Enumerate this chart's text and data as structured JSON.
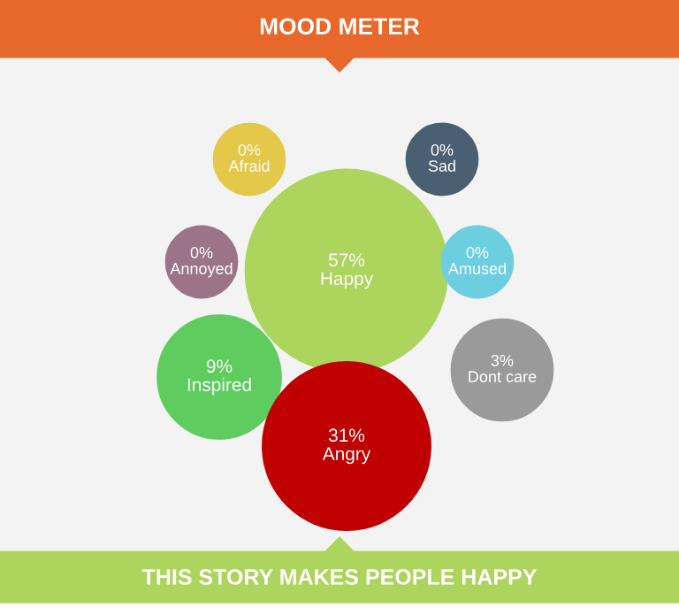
{
  "chart_data": {
    "type": "other",
    "title": "MOOD METER",
    "categories": [
      "Afraid",
      "Sad",
      "Annoyed",
      "Happy",
      "Amused",
      "Inspired",
      "Dont care",
      "Angry"
    ],
    "values": [
      0,
      0,
      0,
      57,
      0,
      9,
      3,
      31
    ],
    "value_labels": [
      "0%",
      "0%",
      "0%",
      "57%",
      "0%",
      "9%",
      "3%",
      "31%"
    ],
    "colors": [
      "#e3c84a",
      "#4a6072",
      "#9b7489",
      "#add45c",
      "#6ccfe0",
      "#5fcc5f",
      "#9a9a9a",
      "#c00000"
    ],
    "annotations": [
      "THIS STORY MAKES PEOPLE HAPPY"
    ]
  }
}
